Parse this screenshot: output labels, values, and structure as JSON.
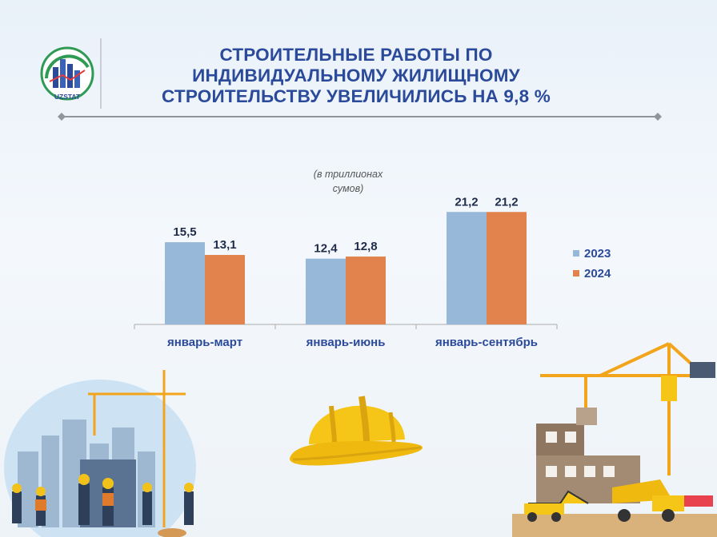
{
  "logo": {
    "text": "UZSTAT"
  },
  "title": {
    "line1": "СТРОИТЕЛЬНЫЕ РАБОТЫ ПО",
    "line2": "ИНДИВИДУАЛЬНОМУ ЖИЛИЩНОМУ",
    "line3": "СТРОИТЕЛЬСТВУ УВЕЛИЧИЛИСЬ НА 9,8 %"
  },
  "colors": {
    "title": "#2b4a9a",
    "series_2023": "#97b8d8",
    "series_2024": "#e2834d",
    "axis_text": "#2b4a9a"
  },
  "chart_data": {
    "type": "bar",
    "unit_note": [
      "(в триллионах",
      "сумов)"
    ],
    "categories": [
      "январь-март",
      "январь-июнь",
      "январь-сентябрь"
    ],
    "series": [
      {
        "name": "2023",
        "values": [
          15.5,
          12.4,
          21.2
        ],
        "labels": [
          "15,5",
          "12,4",
          "21,2"
        ],
        "color": "#97b8d8"
      },
      {
        "name": "2024",
        "values": [
          13.1,
          12.8,
          21.2
        ],
        "labels": [
          "13,1",
          "12,8",
          "21,2"
        ],
        "color": "#e2834d"
      }
    ],
    "ylim": [
      0,
      23.5
    ],
    "legend_position": "right",
    "grid": false
  },
  "icons": [
    "logo-icon",
    "construction-workers-icon",
    "hard-hat-icon",
    "crane-building-site-icon"
  ]
}
